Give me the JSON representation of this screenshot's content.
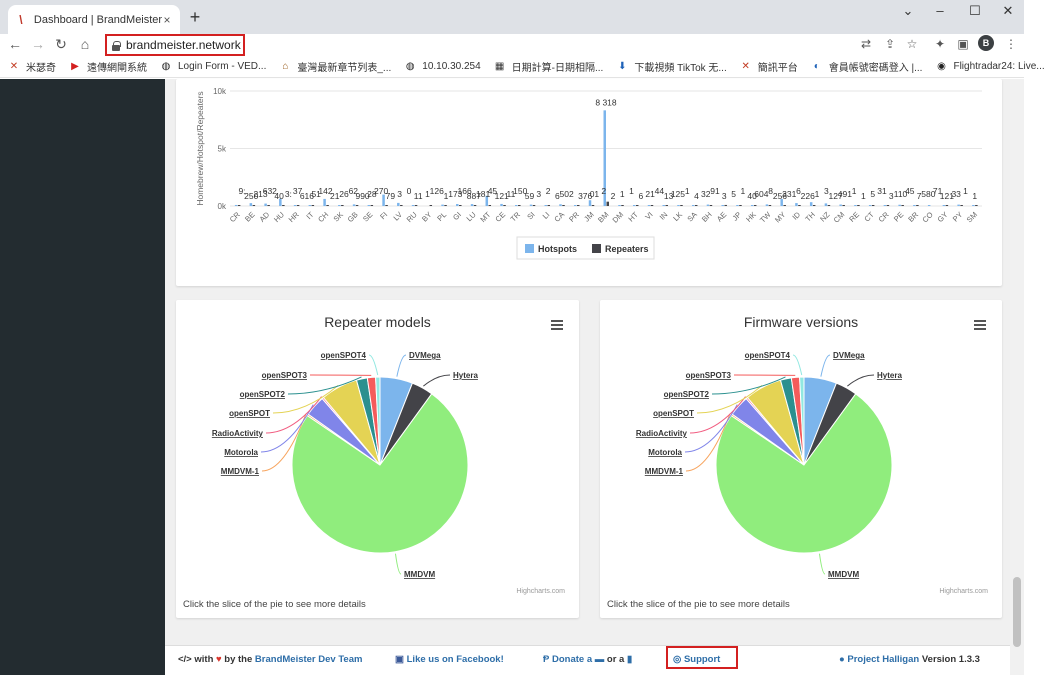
{
  "browser": {
    "tab_title": "Dashboard | BrandMeister",
    "tab_close": "×",
    "new_tab": "+",
    "url": "brandmeister.network",
    "profile_initial": "B",
    "bookmarks": [
      {
        "label": "米瑟奇",
        "color": "#c23b22",
        "glyph": "✕"
      },
      {
        "label": "遠傳網閘系統",
        "color": "#d32020",
        "glyph": "▶"
      },
      {
        "label": "Login Form - VED...",
        "color": "#222",
        "glyph": "◍"
      },
      {
        "label": "臺灣最新章节列表_...",
        "color": "#9a5c1c",
        "glyph": "⌂"
      },
      {
        "label": "10.10.30.254",
        "color": "#222",
        "glyph": "◍"
      },
      {
        "label": "日期計算-日期相隔...",
        "color": "#333",
        "glyph": "▦"
      },
      {
        "label": "下載視頻 TikTok 无...",
        "color": "#1e62b8",
        "glyph": "⬇"
      },
      {
        "label": "簡訊平台",
        "color": "#c23b22",
        "glyph": "✕"
      },
      {
        "label": "會員帳號密碼登入 |...",
        "color": "#1e62b8",
        "glyph": "◐"
      },
      {
        "label": "Flightradar24: Live...",
        "color": "#222",
        "glyph": "◉"
      }
    ]
  },
  "colors": {
    "hotspots": "#7cb5ec",
    "repeaters": "#434348",
    "sidebar": "#232c30",
    "link": "#2e6ea8",
    "highlight": "#d32020"
  },
  "chart_data": [
    {
      "type": "bar",
      "ylabel": "Homebrew/Hotspot/Repeaters",
      "ylim": [
        0,
        10000
      ],
      "yticks": [
        "0k",
        "5k",
        "10k"
      ],
      "categories": [
        "CR",
        "BE",
        "AD",
        "HU",
        "HR",
        "IT",
        "CH",
        "SK",
        "GB",
        "SE",
        "FI",
        "LV",
        "RU",
        "BY",
        "PL",
        "GI",
        "LU",
        "MT",
        "CE",
        "TR",
        "SI",
        "LI",
        "CA",
        "PR",
        "JM",
        "BM",
        "DM",
        "HT",
        "VI",
        "IN",
        "LK",
        "SA",
        "BH",
        "AE",
        "JP",
        "HK",
        "TW",
        "MY",
        "ID",
        "TH",
        "NZ",
        "CM",
        "RE",
        "CT",
        "CR",
        "PE",
        "BR",
        "CO",
        "GY",
        "PY",
        "SM"
      ],
      "series": [
        {
          "name": "Hotspots",
          "values": [
            90,
            250,
            210,
            632,
            40,
            37,
            616,
            51,
            142,
            21,
            990,
            270,
            79,
            0,
            120,
            173,
            166,
            887,
            180,
            45,
            121,
            11,
            150,
            59,
            502,
            8318,
            60,
            2,
            1,
            6,
            21,
            44,
            125,
            4,
            32,
            3,
            140,
            604,
            256,
            331,
            226,
            127,
            49,
            1,
            53,
            110,
            45,
            80,
            71,
            121,
            33
          ]
        },
        {
          "name": "Repeaters",
          "values": [
            1,
            20,
            3,
            20,
            9,
            3,
            20,
            14,
            7,
            25,
            62,
            28,
            8,
            10,
            11,
            7,
            8,
            70,
            18,
            11,
            12,
            2,
            15,
            3,
            26,
            376,
            1,
            2,
            1,
            13,
            41,
            2,
            1,
            91,
            5,
            1,
            9,
            6,
            18,
            16,
            15,
            7,
            1,
            3,
            10,
            5,
            5,
            0,
            12,
            3,
            1
          ]
        }
      ],
      "value_labels": [
        "9:",
        "250",
        "213",
        "632",
        "40",
        "3:",
        "37",
        "616",
        "51",
        "142",
        "21",
        "26",
        "62",
        "990",
        "28",
        "270",
        "79",
        "3",
        "0",
        "11",
        "1",
        "126",
        "1",
        "173",
        "166",
        "887",
        "181",
        "45",
        "121",
        "11",
        "150",
        "59",
        "3",
        "2",
        "6",
        "502",
        "8 318",
        "376",
        "01",
        "2",
        "2",
        "1",
        "1",
        "6",
        "21",
        "44",
        "13",
        "125",
        "1",
        "4",
        "32",
        "91",
        "3",
        "5",
        "1",
        "40",
        "604",
        "8",
        "256",
        "331",
        "6",
        "226",
        "1",
        "3",
        "127",
        "491",
        "1",
        "1",
        "5",
        "31",
        "3",
        "110",
        "45",
        "7",
        "580",
        "71",
        "121",
        "33",
        "1",
        "1"
      ],
      "legend": [
        "Hotspots",
        "Repeaters"
      ]
    },
    {
      "type": "pie",
      "title": "Repeater models",
      "slices": [
        {
          "name": "MMDVM",
          "value": 74.5,
          "color": "#90ed7d"
        },
        {
          "name": "DVMega",
          "value": 6.0,
          "color": "#7cb5ec"
        },
        {
          "name": "Hytera",
          "value": 4.0,
          "color": "#434348"
        },
        {
          "name": "MMDVM-1",
          "value": 0.3,
          "color": "#f7a35c"
        },
        {
          "name": "Motorola",
          "value": 3.8,
          "color": "#8085e9"
        },
        {
          "name": "RadioActivity",
          "value": 0.3,
          "color": "#f15c80"
        },
        {
          "name": "openSPOT",
          "value": 6.8,
          "color": "#e4d354"
        },
        {
          "name": "openSPOT2",
          "value": 2.0,
          "color": "#2b908f"
        },
        {
          "name": "openSPOT3",
          "value": 1.5,
          "color": "#f45b5b"
        },
        {
          "name": "openSPOT4",
          "value": 0.8,
          "color": "#91e8e1"
        }
      ]
    },
    {
      "type": "pie",
      "title": "Firmware versions",
      "slices": [
        {
          "name": "MMDVM",
          "value": 74.5,
          "color": "#90ed7d"
        },
        {
          "name": "DVMega",
          "value": 6.0,
          "color": "#7cb5ec"
        },
        {
          "name": "Hytera",
          "value": 4.0,
          "color": "#434348"
        },
        {
          "name": "MMDVM-1",
          "value": 0.3,
          "color": "#f7a35c"
        },
        {
          "name": "Motorola",
          "value": 3.8,
          "color": "#8085e9"
        },
        {
          "name": "RadioActivity",
          "value": 0.3,
          "color": "#f15c80"
        },
        {
          "name": "openSPOT",
          "value": 6.8,
          "color": "#e4d354"
        },
        {
          "name": "openSPOT2",
          "value": 2.0,
          "color": "#2b908f"
        },
        {
          "name": "openSPOT3",
          "value": 1.5,
          "color": "#f45b5b"
        },
        {
          "name": "openSPOT4",
          "value": 0.8,
          "color": "#91e8e1"
        }
      ]
    }
  ],
  "pie_panel": {
    "credits": "Highcharts.com",
    "hint": "Click the slice of the pie to see more details"
  },
  "footer": {
    "made_with": "</> with",
    "by_the": "by the",
    "team": "BrandMeister Dev Team",
    "facebook": "Like us on Facebook!",
    "donate": "Donate a",
    "or_a": "or a",
    "support": "Support",
    "project": "Project Halligan",
    "version": "Version 1.3.3"
  }
}
